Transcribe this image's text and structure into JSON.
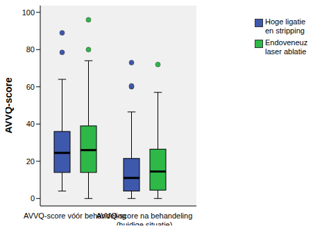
{
  "chart_data": {
    "type": "box",
    "categories": [
      "AVVQ-score vóór behandeling",
      "AVVQ-score na behandeling\n(huidige situatie)"
    ],
    "ylabel": "AVVQ-score",
    "ylim": [
      -4,
      104
    ],
    "yticks": [
      0,
      20,
      40,
      60,
      80,
      100
    ],
    "grid": false,
    "legend": "right",
    "series": [
      {
        "name": "Hoge ligatie en stripping",
        "color": "#3E58AC",
        "values": [
          {
            "min": 4,
            "q1": 14,
            "median": 24.5,
            "q3": 36,
            "max": 64,
            "outliers": [
              78.5,
              89
            ]
          },
          {
            "min": 0,
            "q1": 4,
            "median": 11,
            "q3": 21.5,
            "max": 46.5,
            "outliers": [
              60,
              60.5,
              73
            ]
          }
        ]
      },
      {
        "name": "Endoveneuze laser ablatie",
        "color": "#2EB848",
        "values": [
          {
            "min": 0,
            "q1": 14,
            "median": 26,
            "q3": 39,
            "max": 74,
            "outliers": [
              80,
              96
            ]
          },
          {
            "min": 0,
            "q1": 4.5,
            "median": 14.5,
            "q3": 26.5,
            "max": 57,
            "outliers": [
              72
            ]
          }
        ]
      }
    ]
  }
}
